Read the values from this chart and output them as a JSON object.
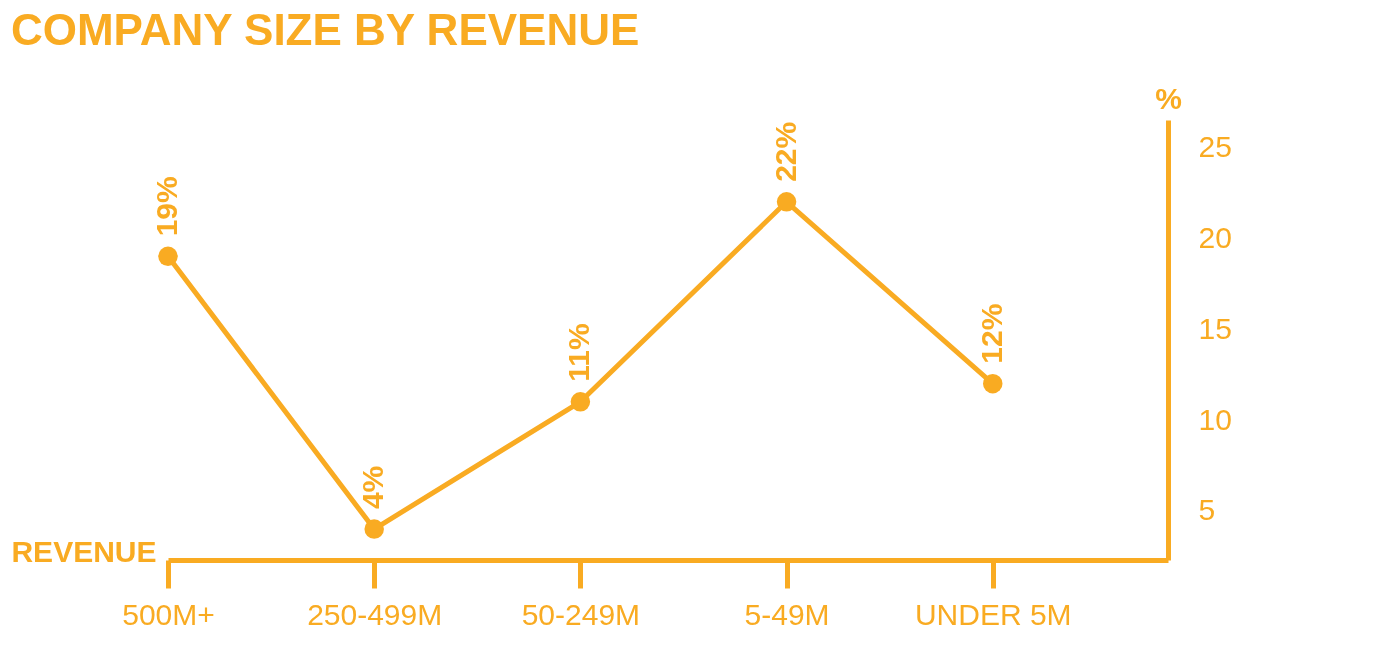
{
  "chart_data": {
    "type": "line",
    "title": "COMPANY SIZE BY REVENUE",
    "xlabel": "REVENUE",
    "ylabel": "%",
    "categories": [
      "500M+",
      "250-499M",
      "50-249M",
      "5-49M",
      "UNDER 5M"
    ],
    "series": [
      {
        "color": "#f9ab22",
        "values": [
          19,
          4,
          11,
          22,
          12
        ],
        "value_labels": [
          "19%",
          "4%",
          "11%",
          "22%",
          "12%"
        ]
      }
    ],
    "ylim": [
      2.3,
      26.5
    ],
    "yticks": [
      5,
      10,
      15,
      20,
      25
    ],
    "grid": false,
    "marker": "circle",
    "line_style": "solid"
  }
}
